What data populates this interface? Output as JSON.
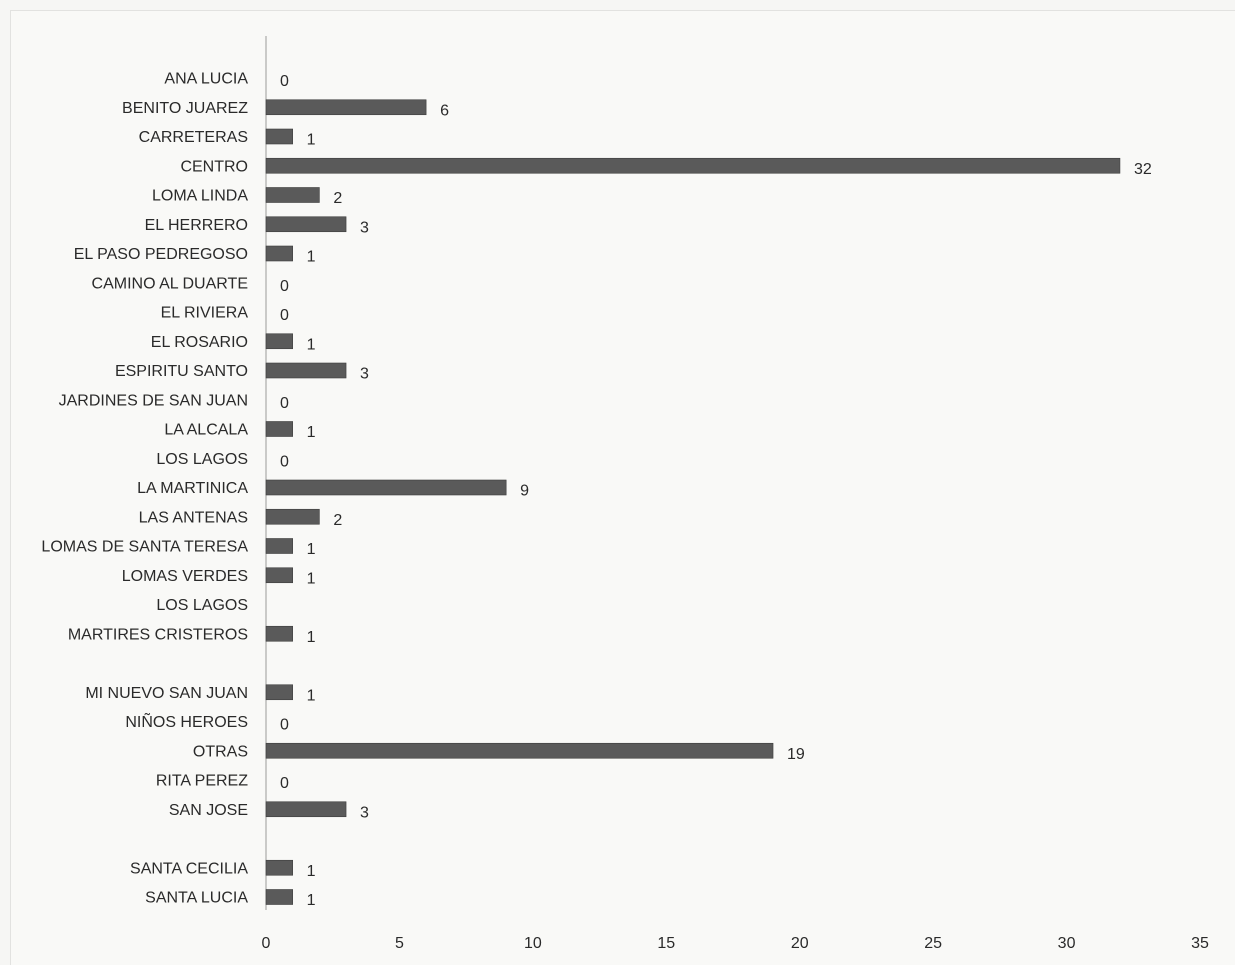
{
  "chart_data": {
    "type": "bar",
    "orientation": "horizontal",
    "title": "",
    "xlabel": "",
    "ylabel": "",
    "xlim": [
      0,
      35
    ],
    "xticks": [
      "0",
      "5",
      "10",
      "15",
      "20",
      "25",
      "30",
      "35"
    ],
    "grid": false,
    "legend": "none",
    "bar_color": "#5a5a5a",
    "categories": [
      "ANA LUCIA",
      "BENITO JUAREZ",
      "CARRETERAS",
      "CENTRO",
      "LOMA LINDA",
      "EL HERRERO",
      "EL PASO PEDREGOSO",
      "CAMINO AL DUARTE",
      "EL RIVIERA",
      "EL ROSARIO",
      "ESPIRITU SANTO",
      "JARDINES DE SAN JUAN",
      "LA ALCALA",
      "LOS LAGOS",
      "LA MARTINICA",
      "LAS ANTENAS",
      "LOMAS DE SANTA TERESA",
      "LOMAS VERDES",
      "LOS LAGOS",
      "MARTIRES CRISTEROS",
      "",
      "MI NUEVO SAN JUAN",
      "NIÑOS HEROES",
      "OTRAS",
      "RITA PEREZ",
      "SAN JOSE",
      "",
      "SANTA CECILIA",
      "SANTA LUCIA"
    ],
    "values": [
      0,
      6,
      1,
      32,
      2,
      3,
      1,
      0,
      0,
      1,
      3,
      0,
      1,
      0,
      9,
      2,
      1,
      1,
      null,
      1,
      null,
      1,
      0,
      19,
      0,
      3,
      null,
      1,
      1
    ],
    "data_labels": [
      "0",
      "6",
      "1",
      "32",
      "2",
      "3",
      "1",
      "0",
      "0",
      "1",
      "3",
      "0",
      "1",
      "0",
      "9",
      "2",
      "1",
      "1",
      "",
      "1",
      "",
      "1",
      "0",
      "19",
      "0",
      "3",
      "",
      "1",
      "1"
    ]
  }
}
